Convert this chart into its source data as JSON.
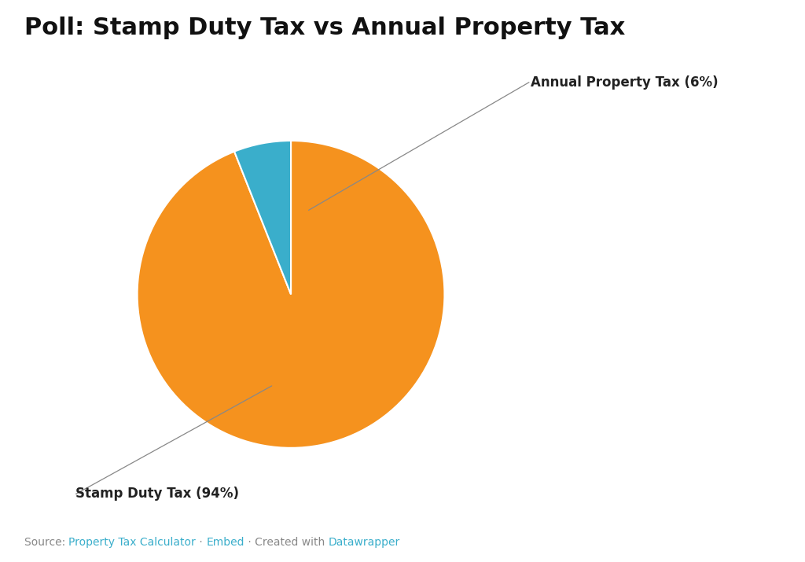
{
  "title": "Poll: Stamp Duty Tax vs Annual Property Tax",
  "slices": [
    {
      "label": "Stamp Duty Tax",
      "pct": 94,
      "color": "#F5921E"
    },
    {
      "label": "Annual Property Tax",
      "pct": 6,
      "color": "#3AAECB"
    }
  ],
  "background_color": "#ffffff",
  "title_fontsize": 22,
  "title_fontweight": "bold",
  "label_fontsize": 12,
  "source_fontsize": 10,
  "annotation_color": "#222222",
  "line_color": "#888888",
  "source_parts": [
    {
      "text": "Source: ",
      "color": "#888888"
    },
    {
      "text": "Property Tax Calculator",
      "color": "#3AAECB"
    },
    {
      "text": " · ",
      "color": "#888888"
    },
    {
      "text": "Embed",
      "color": "#3AAECB"
    },
    {
      "text": " · Created with ",
      "color": "#888888"
    },
    {
      "text": "Datawrapper",
      "color": "#3AAECB"
    }
  ]
}
